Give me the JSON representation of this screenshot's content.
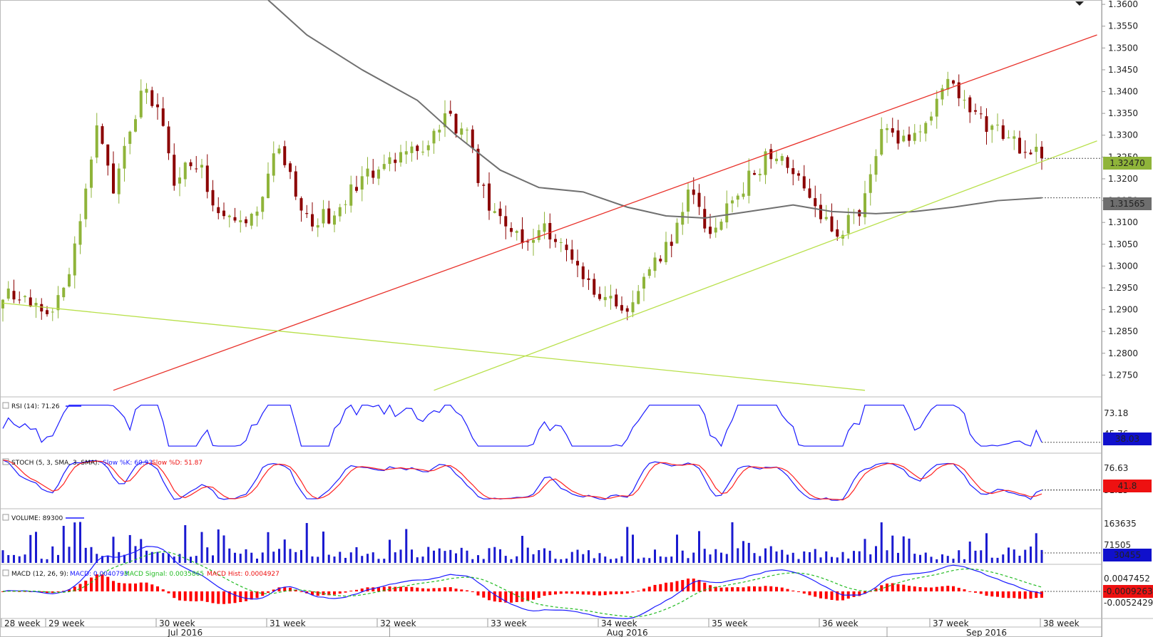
{
  "chart_data": {
    "type": "candlestick",
    "instrument_timeframe": "",
    "main_panel": {
      "ylim": [
        1.27,
        1.361
      ],
      "y_ticks": [
        "1.3600",
        "1.3550",
        "1.3500",
        "1.3450",
        "1.3400",
        "1.3350",
        "1.3300",
        "1.3250",
        "1.3200",
        "1.3150",
        "1.3100",
        "1.3050",
        "1.3000",
        "1.2950",
        "1.2900",
        "1.2850",
        "1.2800",
        "1.2750"
      ],
      "last_price_label": "1.32470",
      "last_price": 1.3247,
      "ma_label": "1.31565",
      "ma_value": 1.31565,
      "anchors": [
        {
          "i": 0,
          "y": 1.294
        },
        {
          "i": 3,
          "y": 1.292
        },
        {
          "i": 8,
          "y": 1.288
        },
        {
          "i": 12,
          "y": 1.298
        },
        {
          "i": 17,
          "y": 1.332
        },
        {
          "i": 20,
          "y": 1.318
        },
        {
          "i": 25,
          "y": 1.34
        },
        {
          "i": 28,
          "y": 1.336
        },
        {
          "i": 31,
          "y": 1.32
        },
        {
          "i": 35,
          "y": 1.324
        },
        {
          "i": 40,
          "y": 1.31
        },
        {
          "i": 45,
          "y": 1.311
        },
        {
          "i": 50,
          "y": 1.328
        },
        {
          "i": 55,
          "y": 1.31
        },
        {
          "i": 60,
          "y": 1.312
        },
        {
          "i": 65,
          "y": 1.32
        },
        {
          "i": 70,
          "y": 1.325
        },
        {
          "i": 75,
          "y": 1.326
        },
        {
          "i": 80,
          "y": 1.334
        },
        {
          "i": 84,
          "y": 1.33
        },
        {
          "i": 88,
          "y": 1.312
        },
        {
          "i": 92,
          "y": 1.308
        },
        {
          "i": 95,
          "y": 1.304
        },
        {
          "i": 98,
          "y": 1.31
        },
        {
          "i": 102,
          "y": 1.302
        },
        {
          "i": 106,
          "y": 1.296
        },
        {
          "i": 110,
          "y": 1.292
        },
        {
          "i": 113,
          "y": 1.288
        },
        {
          "i": 117,
          "y": 1.3
        },
        {
          "i": 121,
          "y": 1.306
        },
        {
          "i": 124,
          "y": 1.318
        },
        {
          "i": 128,
          "y": 1.308
        },
        {
          "i": 131,
          "y": 1.314
        },
        {
          "i": 135,
          "y": 1.32
        },
        {
          "i": 139,
          "y": 1.326
        },
        {
          "i": 143,
          "y": 1.322
        },
        {
          "i": 147,
          "y": 1.314
        },
        {
          "i": 151,
          "y": 1.308
        },
        {
          "i": 155,
          "y": 1.312
        },
        {
          "i": 159,
          "y": 1.33
        },
        {
          "i": 163,
          "y": 1.329
        },
        {
          "i": 167,
          "y": 1.332
        },
        {
          "i": 171,
          "y": 1.343
        },
        {
          "i": 174,
          "y": 1.338
        },
        {
          "i": 178,
          "y": 1.332
        },
        {
          "i": 181,
          "y": 1.33
        },
        {
          "i": 185,
          "y": 1.327
        },
        {
          "i": 188,
          "y": 1.3247
        }
      ],
      "ma_line": [
        {
          "i": 48,
          "y": 1.361
        },
        {
          "i": 55,
          "y": 1.353
        },
        {
          "i": 65,
          "y": 1.345
        },
        {
          "i": 75,
          "y": 1.338
        },
        {
          "i": 82,
          "y": 1.33
        },
        {
          "i": 90,
          "y": 1.322
        },
        {
          "i": 97,
          "y": 1.318
        },
        {
          "i": 105,
          "y": 1.317
        },
        {
          "i": 113,
          "y": 1.3135
        },
        {
          "i": 120,
          "y": 1.3115
        },
        {
          "i": 127,
          "y": 1.311
        },
        {
          "i": 135,
          "y": 1.3125
        },
        {
          "i": 143,
          "y": 1.314
        },
        {
          "i": 150,
          "y": 1.3125
        },
        {
          "i": 158,
          "y": 1.312
        },
        {
          "i": 165,
          "y": 1.3125
        },
        {
          "i": 172,
          "y": 1.3135
        },
        {
          "i": 180,
          "y": 1.315
        },
        {
          "i": 188,
          "y": 1.31565
        }
      ],
      "trendlines": [
        {
          "color": "#e8312a",
          "from": {
            "i": 20,
            "y": 1.2715
          },
          "to": {
            "i": 198,
            "y": 1.353
          }
        },
        {
          "color": "#b8e04a",
          "from": {
            "i": 78,
            "y": 1.2715
          },
          "to": {
            "i": 198,
            "y": 1.3287
          }
        },
        {
          "color": "#b8e04a",
          "from": {
            "i": 0,
            "y": 1.2915
          },
          "to": {
            "i": 156,
            "y": 1.2715
          }
        }
      ]
    },
    "rsi": {
      "label": "RSI (14): 71.26",
      "tick_top": "73.18",
      "tick_mid": "45.76",
      "value_box": "38.03"
    },
    "stoch": {
      "label": "STOCH (5, 3, SMA, 3, SMA): ",
      "k_label": "Slow %K: 60.93",
      "d_label": "Slow %D: 51.87",
      "tick_top": "76.63",
      "tick_mid": "31.15",
      "value_box": "41.8"
    },
    "volume": {
      "label": "VOLUME: 89300",
      "tick_top": "163635",
      "tick_mid": "71505",
      "value_box": "30455"
    },
    "macd": {
      "label": "MACD (12, 26, 9): ",
      "macd_label": "MACD: 0.0040793",
      "signal_label": "MACD Signal: 0.0035865",
      "hist_label": "MACD Hist: 0.0004927",
      "tick_top": "0.0047452",
      "tick_bottom": "-0.0052429",
      "value_box": "-0.0009263"
    },
    "x_week_labels": [
      {
        "text": "28 week",
        "i": 0
      },
      {
        "text": "29 week",
        "i": 8
      },
      {
        "text": "30 week",
        "i": 28
      },
      {
        "text": "31 week",
        "i": 48
      },
      {
        "text": "32 week",
        "i": 68
      },
      {
        "text": "33 week",
        "i": 88
      },
      {
        "text": "34 week",
        "i": 108
      },
      {
        "text": "35 week",
        "i": 128
      },
      {
        "text": "36 week",
        "i": 148
      },
      {
        "text": "37 week",
        "i": 168
      },
      {
        "text": "38 week",
        "i": 188
      }
    ],
    "x_month_labels": [
      {
        "text": "Jul 2016",
        "i": 33
      },
      {
        "text": "Aug 2016",
        "i": 113
      },
      {
        "text": "Sep 2016",
        "i": 178
      }
    ]
  },
  "colors": {
    "bull": "#8fb43a",
    "bear": "#8b0000",
    "rsi": "#1a1aff",
    "stoch_k": "#1a1aff",
    "stoch_d": "#ff2020",
    "volume": "#1a1ad0",
    "macd": "#1a1aff",
    "signal": "#22bb22",
    "hist": "#ff0000",
    "ma": "#707070",
    "price_box": "#8fb43a",
    "rsi_box": "#1010cc",
    "stoch_box": "#ee1111",
    "macd_box": "#ee1111"
  }
}
